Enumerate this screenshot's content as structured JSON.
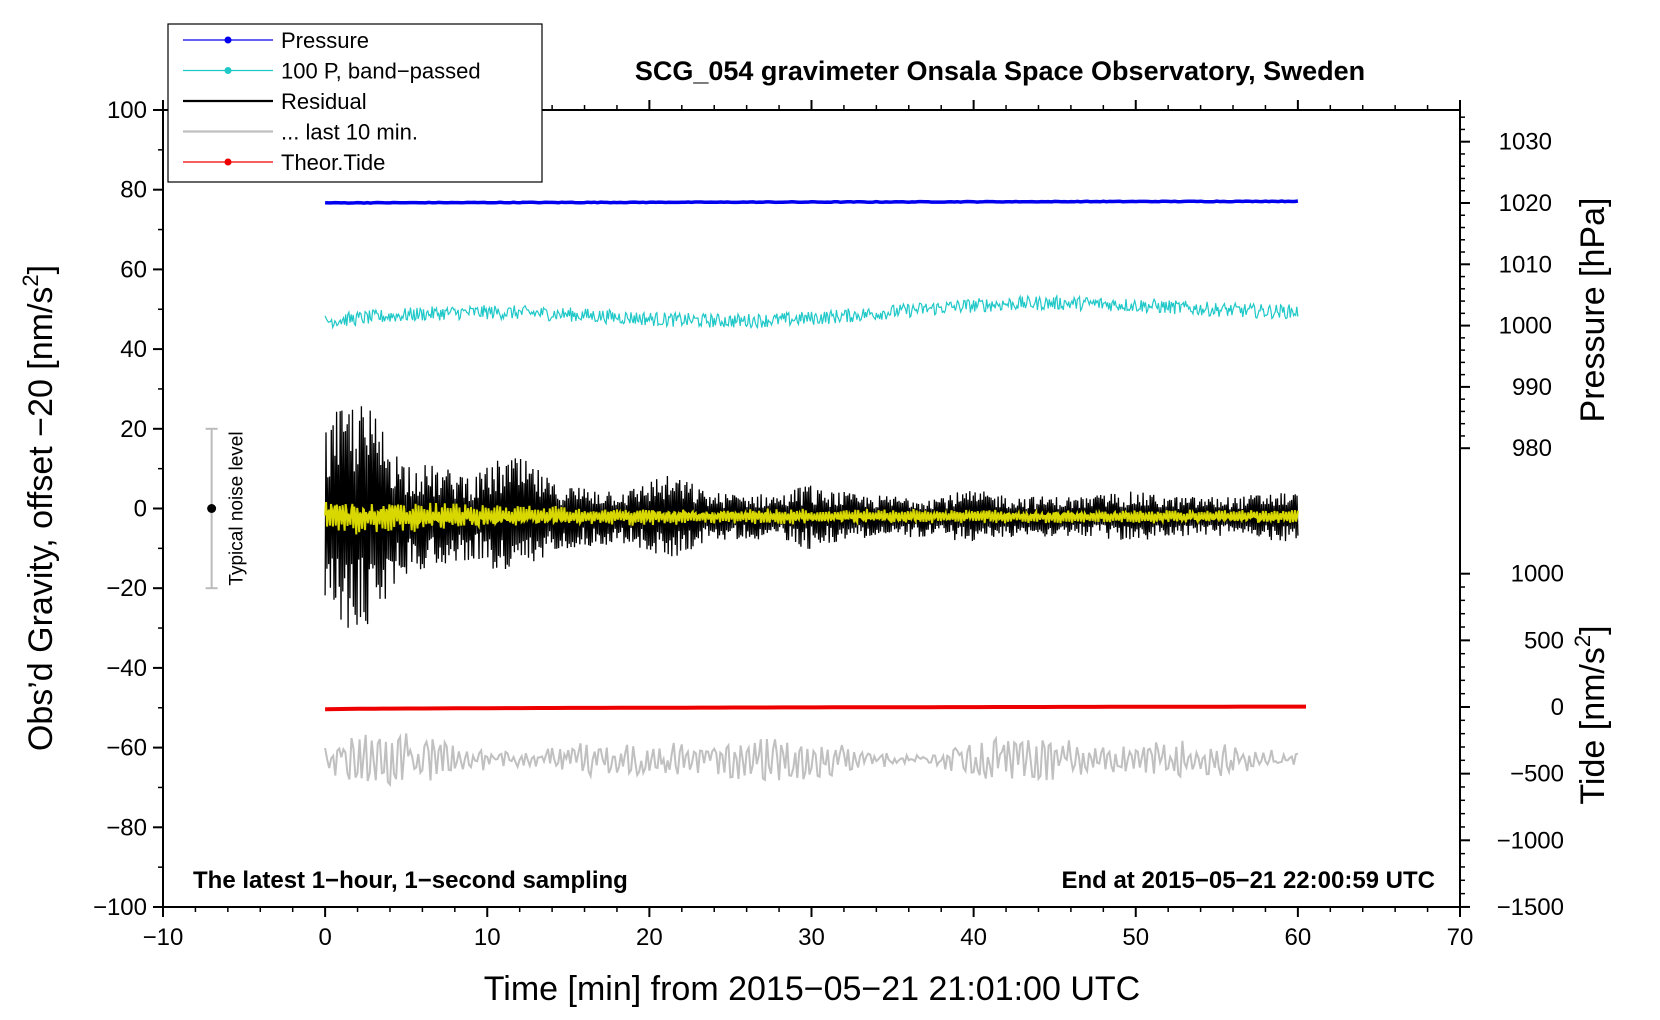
{
  "chart_data": {
    "type": "line",
    "title": "SCG_054 gravimeter Onsala Space Observatory, Sweden",
    "xlabel": "Time [min] from 2015−05−21 21:01:00 UTC",
    "ylabel_left_main": "Obs’d Gravity, offset −20 [nm/s",
    "ylabel_left_sup": "2",
    "ylabel_left_close": "]",
    "ylabel_right_pressure": "Pressure [hPa]",
    "ylabel_right_tide_main": "Tide [nm/s",
    "ylabel_right_tide_sup": "2",
    "ylabel_right_tide_close": "]",
    "xlim": [
      -10,
      70
    ],
    "ylim_left": [
      -100,
      100
    ],
    "pressure_range": [
      975,
      1035
    ],
    "tide_range": [
      -1500,
      1500
    ],
    "x_ticks": [
      -10,
      0,
      10,
      20,
      30,
      40,
      50,
      60,
      70
    ],
    "x_tick_labels": [
      "−10",
      "0",
      "10",
      "20",
      "30",
      "40",
      "50",
      "60",
      "70"
    ],
    "y_left_ticks": [
      -100,
      -80,
      -60,
      -40,
      -20,
      0,
      20,
      40,
      60,
      80,
      100
    ],
    "y_left_tick_labels": [
      "−100",
      "−80",
      "−60",
      "−40",
      "−20",
      "0",
      "20",
      "40",
      "60",
      "80",
      "100"
    ],
    "pressure_ticks": [
      980,
      990,
      1000,
      1010,
      1020,
      1030
    ],
    "pressure_tick_labels": [
      "980",
      "990",
      "1000",
      "1010",
      "1020",
      "1030"
    ],
    "tide_ticks": [
      -1500,
      -1000,
      -500,
      0,
      500,
      1000
    ],
    "tide_tick_labels": [
      "−1500",
      "−1000",
      "−500",
      "0",
      "500",
      "1000"
    ],
    "legend": [
      {
        "label": "Pressure",
        "color": "#0000ee",
        "marker": true
      },
      {
        "label": "100 P, band−passed",
        "color": "#20c8c8",
        "marker": true
      },
      {
        "label": "Residual",
        "color": "#000000",
        "marker": false
      },
      {
        "label": "... last 10 min.",
        "color": "#c0c0c0",
        "marker": false
      },
      {
        "label": "Theor.Tide",
        "color": "#ee0000",
        "marker": true
      }
    ],
    "annotations": {
      "bottom_left": "The latest 1−hour, 1−second sampling",
      "bottom_right": "End at 2015−05−21 22:00:59 UTC",
      "noise_label": "Typical noise level"
    },
    "noise_bar": {
      "x": -7,
      "center": 0,
      "low": -20,
      "high": 20
    },
    "series": [
      {
        "name": "Pressure",
        "color": "#0000ee",
        "x_range": [
          0,
          60
        ],
        "start": 76.7,
        "end": 77.1,
        "amplitude": 0.15
      },
      {
        "name": "100 P, band−passed",
        "color": "#20c8c8",
        "x_range": [
          0,
          60
        ],
        "start": 47,
        "end": 51,
        "amplitude": 1.8
      },
      {
        "name": "Residual",
        "color": "#000000",
        "x_range": [
          0,
          60
        ],
        "center": -2,
        "amplitude_start": 22,
        "amplitude_end": 5,
        "min": -31,
        "max": 27
      },
      {
        "name": "Residual (yellow smoothed)",
        "color": "#d8d800",
        "x_range": [
          0,
          60
        ],
        "center": -2,
        "amplitude": 3
      },
      {
        "name": "... last 10 min.",
        "color": "#c0c0c0",
        "x_range": [
          0,
          60
        ],
        "center": -63,
        "amplitude": 6
      },
      {
        "name": "Theor.Tide",
        "color": "#ee0000",
        "x_range": [
          0,
          60.5
        ],
        "start": -50.4,
        "end": -49.7
      }
    ]
  }
}
